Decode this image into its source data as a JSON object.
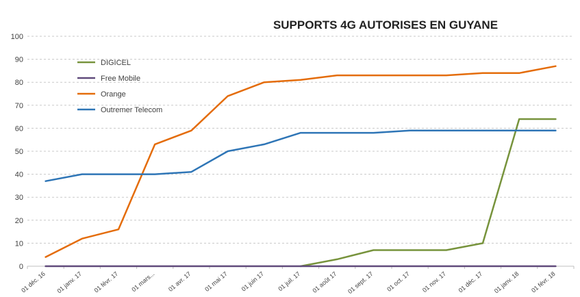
{
  "chart_data": {
    "type": "line",
    "title": "SUPPORTS 4G AUTORISES EN GUYANE",
    "xlabel": "",
    "ylabel": "",
    "ylim": [
      0,
      100
    ],
    "yticks": [
      0,
      10,
      20,
      30,
      40,
      50,
      60,
      70,
      80,
      90,
      100
    ],
    "grid": true,
    "legend_position": "top-left",
    "categories": [
      "01 déc. 16",
      "01 janv. 17",
      "01 févr. 17",
      "01 mars...",
      "01 avr. 17",
      "01 mai 17",
      "01 juin 17",
      "01 juil. 17",
      "01 août 17",
      "01 sept. 17",
      "01 oct. 17",
      "01 nov. 17",
      "01 déc. 17",
      "01 janv. 18",
      "01 févr. 18"
    ],
    "series": [
      {
        "name": "DIGICEL",
        "color": "#77933c",
        "values": [
          null,
          null,
          null,
          null,
          null,
          null,
          null,
          0,
          3,
          7,
          7,
          7,
          10,
          64,
          64
        ]
      },
      {
        "name": "Free Mobile",
        "color": "#604a7b",
        "values": [
          0,
          0,
          0,
          0,
          0,
          0,
          0,
          0,
          0,
          0,
          0,
          0,
          0,
          0,
          0
        ]
      },
      {
        "name": "Orange",
        "color": "#e46c0a",
        "values": [
          4,
          12,
          16,
          53,
          59,
          74,
          80,
          81,
          83,
          83,
          83,
          83,
          84,
          84,
          87
        ]
      },
      {
        "name": "Outremer Telecom",
        "color": "#2e75b6",
        "values": [
          37,
          40,
          40,
          40,
          41,
          50,
          53,
          58,
          58,
          58,
          59,
          59,
          59,
          59,
          59
        ]
      }
    ]
  }
}
